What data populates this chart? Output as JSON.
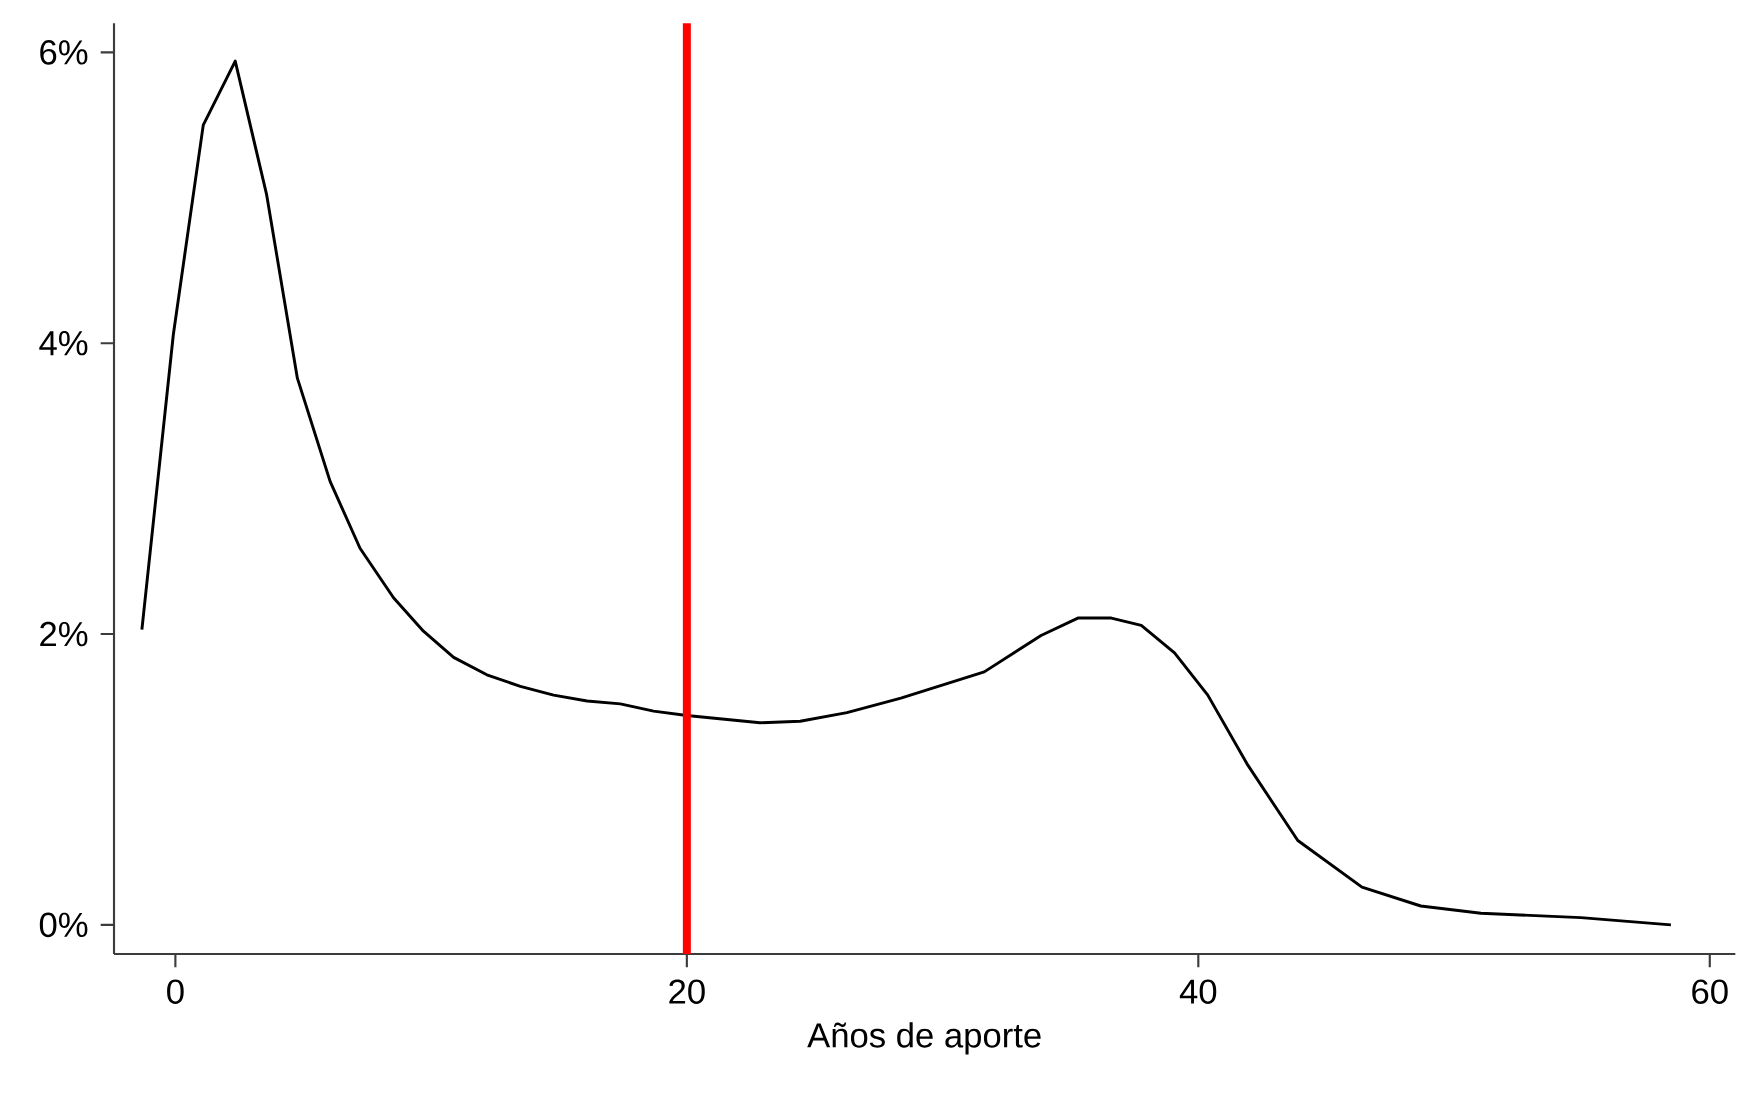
{
  "chart_data": {
    "type": "line",
    "xlabel": "Años de aporte",
    "x": [
      -1.31,
      -0.08,
      1.09,
      2.34,
      3.57,
      4.77,
      6.05,
      7.22,
      8.53,
      9.7,
      10.88,
      12.18,
      13.49,
      14.79,
      16.1,
      17.4,
      18.7,
      20,
      22.86,
      24.43,
      26.26,
      28.37,
      31.63,
      33.85,
      35.29,
      36.6,
      37.77,
      39.07,
      40.37,
      41.93,
      43.89,
      46.4,
      48.7,
      51.05,
      54.96,
      58.48
    ],
    "series": [
      {
        "color": "#000000",
        "values": [
          2.03,
          4.06,
          5.5,
          5.94,
          5.02,
          3.76,
          3.05,
          2.59,
          2.25,
          2.02,
          1.84,
          1.72,
          1.64,
          1.58,
          1.54,
          1.52,
          1.47,
          1.44,
          1.39,
          1.4,
          1.46,
          1.56,
          1.74,
          1.99,
          2.11,
          2.11,
          2.06,
          1.87,
          1.58,
          1.1,
          0.58,
          0.26,
          0.13,
          0.08,
          0.05,
          0.0
        ]
      }
    ],
    "xlim": [
      -2.4,
      61
    ],
    "ylim": [
      -0.2,
      6.2
    ],
    "xticks": [
      0,
      20,
      40,
      60
    ],
    "yticks": [
      {
        "value": 0,
        "label": "0%"
      },
      {
        "value": 2,
        "label": "2%"
      },
      {
        "value": 4,
        "label": "4%"
      },
      {
        "value": 6,
        "label": "6%"
      }
    ],
    "ref_lines": [
      {
        "axis": "x",
        "value": 20,
        "color": "#ff0000"
      }
    ],
    "marker": "none",
    "line_style": "solid"
  }
}
